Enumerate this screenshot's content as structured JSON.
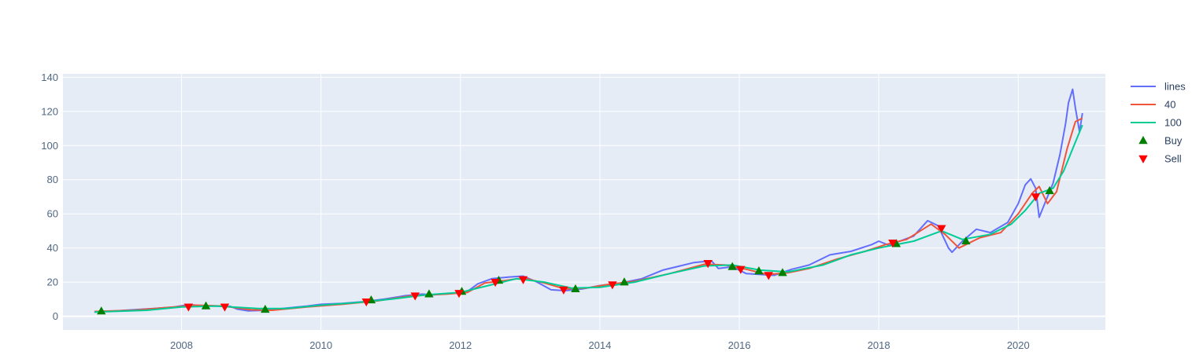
{
  "chart_data": {
    "type": "line",
    "title": "",
    "xlabel": "",
    "ylabel": "",
    "xlim": [
      2006.3,
      2021.25
    ],
    "ylim": [
      -8,
      142
    ],
    "x_ticks": [
      2008,
      2010,
      2012,
      2014,
      2016,
      2018,
      2020
    ],
    "y_ticks": [
      0,
      20,
      40,
      60,
      80,
      100,
      120,
      140
    ],
    "grid": true,
    "legend_position": "top-right",
    "colors": {
      "plot_bg": "#e5ecf6",
      "grid": "#ffffff",
      "lines": "#636efa",
      "ma40": "#ef553b",
      "ma100": "#00cc96",
      "buy": "#008000",
      "sell": "#ff0000"
    },
    "series": [
      {
        "name": "lines",
        "kind": "line",
        "x": [
          2006.75,
          2007.0,
          2007.3,
          2007.6,
          2007.9,
          2008.1,
          2008.3,
          2008.5,
          2008.7,
          2008.8,
          2008.95,
          2009.2,
          2009.5,
          2009.8,
          2010.0,
          2010.3,
          2010.6,
          2010.9,
          2011.2,
          2011.45,
          2011.6,
          2011.9,
          2012.1,
          2012.25,
          2012.45,
          2012.7,
          2012.9,
          2013.1,
          2013.3,
          2013.5,
          2013.75,
          2014.0,
          2014.3,
          2014.6,
          2014.9,
          2015.1,
          2015.35,
          2015.6,
          2015.7,
          2015.9,
          2016.1,
          2016.3,
          2016.5,
          2016.75,
          2017.0,
          2017.3,
          2017.6,
          2017.9,
          2018.0,
          2018.15,
          2018.3,
          2018.5,
          2018.7,
          2018.85,
          2019.0,
          2019.05,
          2019.2,
          2019.4,
          2019.6,
          2019.85,
          2020.0,
          2020.1,
          2020.18,
          2020.25,
          2020.3,
          2020.4,
          2020.5,
          2020.6,
          2020.68,
          2020.72,
          2020.78,
          2020.82,
          2020.88,
          2020.92
        ],
        "y": [
          2.5,
          3.0,
          3.8,
          4.5,
          5.5,
          6.8,
          6.2,
          6.0,
          5.8,
          4.2,
          3.2,
          3.5,
          4.8,
          6.0,
          7.0,
          7.5,
          8.5,
          10.0,
          12.0,
          13.0,
          12.5,
          13.5,
          14.5,
          19.0,
          22.0,
          23.0,
          23.5,
          20.0,
          15.5,
          15.0,
          16.0,
          18.0,
          19.5,
          22.0,
          27.0,
          29.0,
          31.5,
          32.5,
          28.0,
          29.0,
          25.0,
          24.5,
          24.0,
          27.5,
          30.0,
          36.0,
          38.0,
          42.0,
          44.0,
          41.5,
          44.0,
          47.0,
          56.0,
          53.0,
          40.0,
          37.5,
          44.0,
          51.0,
          49.0,
          55.0,
          66.0,
          77.0,
          80.5,
          75.0,
          58.0,
          68.0,
          78.0,
          95.0,
          113.0,
          125.0,
          133.0,
          122.0,
          108.0,
          119.0
        ]
      },
      {
        "name": "40",
        "kind": "line",
        "x": [
          2006.75,
          2007.3,
          2007.9,
          2008.2,
          2008.6,
          2009.0,
          2009.3,
          2009.8,
          2010.3,
          2010.8,
          2011.3,
          2011.8,
          2012.1,
          2012.35,
          2012.65,
          2012.9,
          2013.2,
          2013.5,
          2013.8,
          2014.1,
          2014.5,
          2015.0,
          2015.5,
          2015.8,
          2016.1,
          2016.4,
          2016.7,
          2017.0,
          2017.4,
          2017.8,
          2018.1,
          2018.4,
          2018.75,
          2018.95,
          2019.15,
          2019.45,
          2019.75,
          2020.0,
          2020.2,
          2020.3,
          2020.42,
          2020.55,
          2020.7,
          2020.82,
          2020.92
        ],
        "y": [
          2.8,
          3.5,
          5.5,
          6.5,
          6.0,
          3.8,
          3.5,
          5.5,
          7.0,
          9.0,
          12.0,
          13.0,
          14.0,
          19.5,
          21.0,
          22.5,
          19.5,
          16.0,
          16.5,
          18.5,
          20.5,
          25.0,
          30.5,
          30.0,
          27.5,
          24.5,
          25.5,
          28.0,
          33.5,
          38.0,
          42.0,
          45.0,
          54.0,
          48.0,
          40.0,
          46.0,
          49.0,
          60.0,
          72.0,
          76.0,
          66.0,
          73.0,
          98.0,
          114.0,
          116.0
        ]
      },
      {
        "name": "100",
        "kind": "line",
        "x": [
          2006.75,
          2007.5,
          2008.0,
          2008.5,
          2009.1,
          2009.5,
          2010.0,
          2010.5,
          2011.0,
          2011.5,
          2012.0,
          2012.4,
          2012.8,
          2013.2,
          2013.6,
          2014.0,
          2014.5,
          2015.0,
          2015.5,
          2015.9,
          2016.3,
          2016.7,
          2017.2,
          2017.6,
          2018.0,
          2018.5,
          2018.9,
          2019.2,
          2019.6,
          2019.9,
          2020.1,
          2020.3,
          2020.5,
          2020.65,
          2020.8,
          2020.92
        ],
        "y": [
          2.5,
          3.5,
          5.5,
          6.0,
          4.5,
          4.5,
          6.5,
          8.0,
          10.0,
          12.5,
          14.0,
          18.0,
          22.0,
          20.0,
          16.5,
          17.0,
          20.0,
          25.0,
          29.5,
          30.0,
          27.0,
          26.0,
          30.0,
          36.0,
          40.0,
          44.0,
          50.0,
          45.0,
          48.0,
          54.0,
          62.0,
          72.0,
          75.0,
          85.0,
          100.0,
          112.0
        ]
      },
      {
        "name": "Buy",
        "kind": "markers",
        "marker": "triangle-up",
        "x": [
          2006.85,
          2008.35,
          2009.2,
          2010.72,
          2011.55,
          2012.02,
          2012.55,
          2013.65,
          2014.35,
          2015.9,
          2016.28,
          2016.62,
          2018.25,
          2019.25,
          2020.45
        ],
        "y": [
          3.0,
          6.0,
          4.0,
          9.5,
          13.0,
          14.5,
          21.0,
          16.0,
          20.0,
          29.0,
          26.5,
          25.5,
          42.5,
          44.0,
          73.5
        ]
      },
      {
        "name": "Sell",
        "kind": "markers",
        "marker": "triangle-down",
        "x": [
          2008.1,
          2008.62,
          2010.65,
          2011.35,
          2011.98,
          2012.5,
          2012.9,
          2013.48,
          2014.18,
          2015.55,
          2016.02,
          2016.42,
          2018.2,
          2018.9,
          2020.25
        ],
        "y": [
          5.5,
          5.5,
          8.5,
          12.0,
          13.5,
          20.0,
          21.5,
          15.5,
          18.5,
          31.0,
          27.5,
          24.0,
          43.0,
          51.5,
          70.0
        ]
      }
    ]
  }
}
